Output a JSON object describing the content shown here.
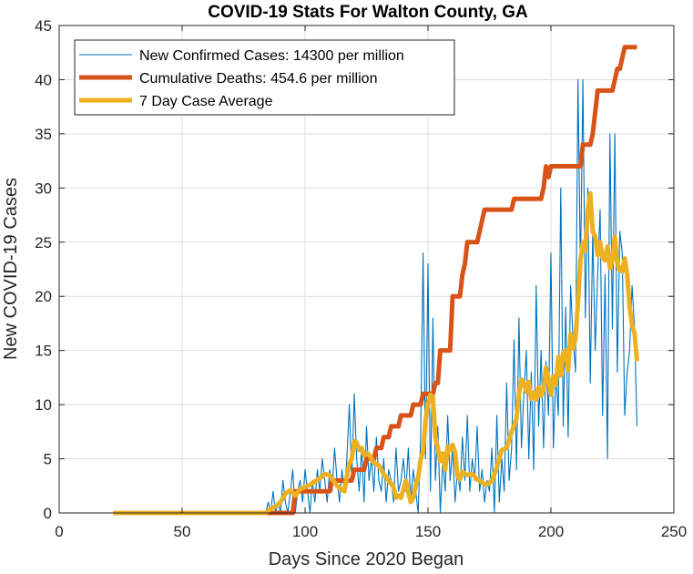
{
  "chart_data": {
    "type": "line",
    "title": "COVID-19 Stats For Walton County, GA",
    "xlabel": "Days Since 2020 Began",
    "ylabel": "New COVID-19 Cases",
    "xlim": [
      0,
      250
    ],
    "ylim": [
      0,
      45
    ],
    "xticks": [
      0,
      50,
      100,
      150,
      200,
      250
    ],
    "yticks": [
      0,
      5,
      10,
      15,
      20,
      25,
      30,
      35,
      40,
      45
    ],
    "grid": true,
    "legend_position": "top-left",
    "series": [
      {
        "name": "New Confirmed Cases: 14300 per million",
        "color": "#0072BD",
        "points": [
          [
            22,
            0
          ],
          [
            84,
            0
          ],
          [
            85,
            1
          ],
          [
            86,
            0
          ],
          [
            87,
            2
          ],
          [
            88,
            0
          ],
          [
            89,
            1
          ],
          [
            90,
            0
          ],
          [
            91,
            3
          ],
          [
            92,
            1
          ],
          [
            93,
            0
          ],
          [
            94,
            2
          ],
          [
            95,
            4
          ],
          [
            96,
            0
          ],
          [
            97,
            2
          ],
          [
            98,
            3
          ],
          [
            99,
            1
          ],
          [
            100,
            4
          ],
          [
            101,
            2
          ],
          [
            102,
            0
          ],
          [
            103,
            3
          ],
          [
            104,
            1
          ],
          [
            105,
            4
          ],
          [
            106,
            2
          ],
          [
            107,
            5
          ],
          [
            108,
            3
          ],
          [
            109,
            1
          ],
          [
            110,
            4
          ],
          [
            111,
            2
          ],
          [
            112,
            6
          ],
          [
            113,
            3
          ],
          [
            114,
            1
          ],
          [
            115,
            4
          ],
          [
            116,
            2
          ],
          [
            117,
            5
          ],
          [
            118,
            10
          ],
          [
            119,
            3
          ],
          [
            120,
            11
          ],
          [
            121,
            5
          ],
          [
            122,
            2
          ],
          [
            123,
            6
          ],
          [
            124,
            1
          ],
          [
            125,
            8
          ],
          [
            126,
            3
          ],
          [
            127,
            5
          ],
          [
            128,
            2
          ],
          [
            129,
            7
          ],
          [
            130,
            3
          ],
          [
            131,
            2
          ],
          [
            132,
            5
          ],
          [
            133,
            1
          ],
          [
            134,
            4
          ],
          [
            135,
            3
          ],
          [
            136,
            1
          ],
          [
            137,
            6
          ],
          [
            138,
            2
          ],
          [
            139,
            3
          ],
          [
            140,
            5
          ],
          [
            141,
            2
          ],
          [
            142,
            6
          ],
          [
            143,
            1
          ],
          [
            144,
            4
          ],
          [
            145,
            2
          ],
          [
            146,
            0
          ],
          [
            147,
            7
          ],
          [
            148,
            24
          ],
          [
            149,
            5
          ],
          [
            150,
            23
          ],
          [
            151,
            2
          ],
          [
            152,
            18
          ],
          [
            153,
            3
          ],
          [
            154,
            8
          ],
          [
            155,
            0
          ],
          [
            156,
            5
          ],
          [
            157,
            2
          ],
          [
            158,
            9
          ],
          [
            159,
            3
          ],
          [
            160,
            6
          ],
          [
            161,
            1
          ],
          [
            162,
            4
          ],
          [
            163,
            2
          ],
          [
            164,
            7
          ],
          [
            165,
            3
          ],
          [
            166,
            9
          ],
          [
            167,
            2
          ],
          [
            168,
            5
          ],
          [
            169,
            3
          ],
          [
            170,
            8
          ],
          [
            171,
            2
          ],
          [
            172,
            4
          ],
          [
            173,
            1
          ],
          [
            174,
            3
          ],
          [
            175,
            2
          ],
          [
            176,
            6
          ],
          [
            177,
            0
          ],
          [
            178,
            9
          ],
          [
            179,
            1
          ],
          [
            180,
            5
          ],
          [
            181,
            2
          ],
          [
            182,
            12
          ],
          [
            183,
            3
          ],
          [
            184,
            6
          ],
          [
            185,
            16
          ],
          [
            186,
            4
          ],
          [
            187,
            18
          ],
          [
            188,
            6
          ],
          [
            189,
            11
          ],
          [
            190,
            15
          ],
          [
            191,
            5
          ],
          [
            192,
            13
          ],
          [
            193,
            4
          ],
          [
            194,
            21
          ],
          [
            195,
            8
          ],
          [
            196,
            15
          ],
          [
            197,
            6
          ],
          [
            198,
            14
          ],
          [
            199,
            9
          ],
          [
            200,
            24
          ],
          [
            201,
            6
          ],
          [
            202,
            13
          ],
          [
            203,
            9
          ],
          [
            204,
            30
          ],
          [
            205,
            8
          ],
          [
            206,
            19
          ],
          [
            207,
            7
          ],
          [
            208,
            21
          ],
          [
            209,
            16
          ],
          [
            210,
            13
          ],
          [
            211,
            40
          ],
          [
            212,
            22
          ],
          [
            213,
            40
          ],
          [
            214,
            18
          ],
          [
            215,
            30
          ],
          [
            216,
            12
          ],
          [
            217,
            26
          ],
          [
            218,
            15
          ],
          [
            219,
            22
          ],
          [
            220,
            28
          ],
          [
            221,
            9
          ],
          [
            222,
            22
          ],
          [
            223,
            5
          ],
          [
            224,
            35
          ],
          [
            225,
            17
          ],
          [
            226,
            35
          ],
          [
            227,
            13
          ],
          [
            228,
            26
          ],
          [
            229,
            24
          ],
          [
            230,
            9
          ],
          [
            231,
            13
          ],
          [
            232,
            15
          ],
          [
            233,
            21
          ],
          [
            234,
            17
          ],
          [
            235,
            8
          ]
        ]
      },
      {
        "name": "Cumulative Deaths: 454.6 per million",
        "color": "#D95319",
        "points": [
          [
            22,
            0
          ],
          [
            95,
            0
          ],
          [
            96,
            2
          ],
          [
            110,
            2
          ],
          [
            111,
            3
          ],
          [
            119,
            3
          ],
          [
            120,
            4
          ],
          [
            124,
            4
          ],
          [
            125,
            5
          ],
          [
            128,
            5
          ],
          [
            129,
            6
          ],
          [
            131,
            6
          ],
          [
            132,
            7
          ],
          [
            134,
            7
          ],
          [
            135,
            8
          ],
          [
            138,
            8
          ],
          [
            139,
            9
          ],
          [
            143,
            9
          ],
          [
            144,
            10
          ],
          [
            147,
            10
          ],
          [
            148,
            11
          ],
          [
            152,
            11
          ],
          [
            153,
            12
          ],
          [
            154,
            12
          ],
          [
            155,
            15
          ],
          [
            159,
            15
          ],
          [
            160,
            20
          ],
          [
            163,
            20
          ],
          [
            164,
            22
          ],
          [
            165,
            23
          ],
          [
            166,
            25
          ],
          [
            170,
            25
          ],
          [
            171,
            26
          ],
          [
            172,
            27
          ],
          [
            173,
            28
          ],
          [
            184,
            28
          ],
          [
            185,
            29
          ],
          [
            196,
            29
          ],
          [
            197,
            30
          ],
          [
            198,
            32
          ],
          [
            199,
            31
          ],
          [
            200,
            32
          ],
          [
            212,
            32
          ],
          [
            213,
            34
          ],
          [
            216,
            34
          ],
          [
            217,
            35
          ],
          [
            218,
            37
          ],
          [
            219,
            39
          ],
          [
            225,
            39
          ],
          [
            226,
            40
          ],
          [
            227,
            41
          ],
          [
            228,
            41
          ],
          [
            229,
            42
          ],
          [
            230,
            43
          ],
          [
            235,
            43
          ]
        ]
      },
      {
        "name": "7 Day Case Average",
        "color": "#EDB120",
        "points": [
          [
            22,
            0
          ],
          [
            84,
            0
          ],
          [
            86,
            0.4
          ],
          [
            88,
            0.6
          ],
          [
            90,
            1.0
          ],
          [
            92,
            1.8
          ],
          [
            94,
            2.1
          ],
          [
            96,
            1.6
          ],
          [
            98,
            2.2
          ],
          [
            100,
            2.4
          ],
          [
            102,
            2.6
          ],
          [
            104,
            2.9
          ],
          [
            106,
            3.2
          ],
          [
            108,
            3.6
          ],
          [
            110,
            3.5
          ],
          [
            112,
            2.8
          ],
          [
            114,
            2.3
          ],
          [
            116,
            2.0
          ],
          [
            117,
            3.4
          ],
          [
            118,
            4.5
          ],
          [
            119,
            5.0
          ],
          [
            120,
            6.6
          ],
          [
            121,
            6.5
          ],
          [
            122,
            5.8
          ],
          [
            123,
            6.0
          ],
          [
            124,
            5.3
          ],
          [
            125,
            5.5
          ],
          [
            126,
            5.4
          ],
          [
            128,
            4.6
          ],
          [
            130,
            4.4
          ],
          [
            132,
            3.6
          ],
          [
            134,
            3.0
          ],
          [
            136,
            2.4
          ],
          [
            137,
            1.4
          ],
          [
            138,
            1.6
          ],
          [
            139,
            1.4
          ],
          [
            140,
            2.2
          ],
          [
            141,
            3.0
          ],
          [
            142,
            1.9
          ],
          [
            143,
            1.0
          ],
          [
            144,
            1.4
          ],
          [
            145,
            2.5
          ],
          [
            146,
            3.3
          ],
          [
            147,
            4.9
          ],
          [
            148,
            5.7
          ],
          [
            149,
            8.6
          ],
          [
            150,
            10.0
          ],
          [
            151,
            10.9
          ],
          [
            152,
            10.7
          ],
          [
            153,
            7.0
          ],
          [
            154,
            6.0
          ],
          [
            155,
            4.8
          ],
          [
            156,
            5.5
          ],
          [
            157,
            4.0
          ],
          [
            158,
            6.1
          ],
          [
            159,
            5.8
          ],
          [
            160,
            6.3
          ],
          [
            161,
            5.6
          ],
          [
            162,
            3.4
          ],
          [
            163,
            3.1
          ],
          [
            164,
            3.8
          ],
          [
            166,
            3.5
          ],
          [
            168,
            3.6
          ],
          [
            170,
            3.1
          ],
          [
            172,
            2.8
          ],
          [
            174,
            2.6
          ],
          [
            176,
            3.0
          ],
          [
            178,
            4.2
          ],
          [
            180,
            5.8
          ],
          [
            182,
            6.0
          ],
          [
            184,
            7.5
          ],
          [
            186,
            8.7
          ],
          [
            187,
            11.0
          ],
          [
            188,
            12.3
          ],
          [
            189,
            12.0
          ],
          [
            190,
            11.2
          ],
          [
            191,
            12.1
          ],
          [
            192,
            10.5
          ],
          [
            193,
            11.1
          ],
          [
            194,
            10.5
          ],
          [
            195,
            11.6
          ],
          [
            196,
            10.8
          ],
          [
            197,
            11.4
          ],
          [
            198,
            13.4
          ],
          [
            199,
            12.3
          ],
          [
            200,
            10.9
          ],
          [
            201,
            12.6
          ],
          [
            202,
            11.8
          ],
          [
            203,
            14.4
          ],
          [
            204,
            12.7
          ],
          [
            205,
            14.8
          ],
          [
            206,
            15.0
          ],
          [
            207,
            13.2
          ],
          [
            208,
            16.5
          ],
          [
            209,
            15.2
          ],
          [
            210,
            16.1
          ],
          [
            211,
            19.5
          ],
          [
            212,
            23.3
          ],
          [
            213,
            25.0
          ],
          [
            214,
            24.2
          ],
          [
            215,
            28.0
          ],
          [
            216,
            29.5
          ],
          [
            217,
            26.0
          ],
          [
            218,
            25.5
          ],
          [
            219,
            23.8
          ],
          [
            220,
            25.0
          ],
          [
            221,
            23.6
          ],
          [
            222,
            23.3
          ],
          [
            223,
            24.6
          ],
          [
            224,
            22.6
          ],
          [
            225,
            23.4
          ],
          [
            226,
            25.5
          ],
          [
            227,
            23.0
          ],
          [
            228,
            22.4
          ],
          [
            229,
            22.3
          ],
          [
            230,
            23.5
          ],
          [
            231,
            22.0
          ],
          [
            232,
            19.0
          ],
          [
            233,
            17.3
          ],
          [
            234,
            16.6
          ],
          [
            235,
            14.0
          ]
        ]
      }
    ]
  }
}
